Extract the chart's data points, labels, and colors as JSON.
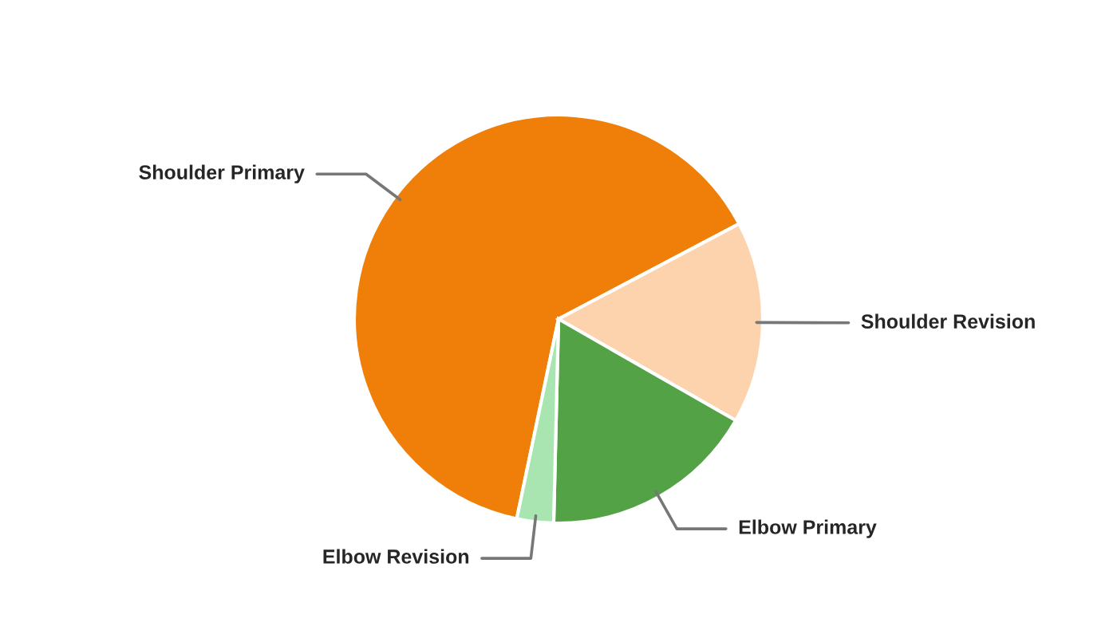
{
  "chart_data": {
    "type": "pie",
    "categories": [
      "Shoulder Primary",
      "Shoulder Revision",
      "Elbow Primary",
      "Elbow Revision"
    ],
    "values": [
      64.0,
      16.0,
      17.1,
      2.9
    ],
    "colors": [
      "#f07f09",
      "#fdd3ad",
      "#54a246",
      "#a9e5b0"
    ],
    "legend": false
  }
}
